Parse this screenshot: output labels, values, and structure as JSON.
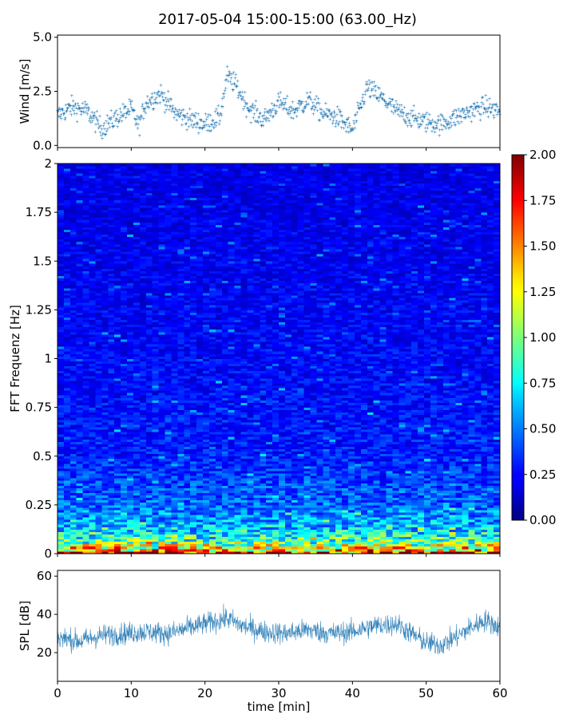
{
  "title": "2017-05-04 15:00-15:00 (63.00_Hz)",
  "chart_data": [
    {
      "type": "scatter",
      "panel": "wind",
      "ylabel": "Wind [m/s]",
      "xlim": [
        0,
        60
      ],
      "ylim": [
        -0.1,
        5.1
      ],
      "yticks": [
        "0.0",
        "2.5",
        "5.0"
      ],
      "ytick_values": [
        0,
        2.5,
        5
      ],
      "color": "#1f77b4",
      "series": [
        {
          "x_minutes": [
            0,
            2,
            4,
            6,
            8,
            10,
            11,
            12,
            14,
            16,
            18,
            20,
            22,
            23,
            24,
            26,
            28,
            30,
            32,
            34,
            36,
            38,
            40,
            42,
            44,
            46,
            48,
            50,
            52,
            54,
            56,
            58,
            60
          ],
          "values": [
            1.4,
            1.8,
            1.6,
            0.8,
            1.3,
            1.7,
            0.9,
            2.0,
            2.4,
            1.5,
            1.2,
            1.0,
            1.3,
            3.2,
            2.9,
            1.7,
            1.2,
            2.0,
            1.6,
            2.1,
            1.5,
            1.3,
            0.7,
            2.7,
            2.2,
            1.6,
            1.3,
            1.1,
            1.0,
            1.3,
            1.6,
            1.8,
            1.6
          ]
        }
      ]
    },
    {
      "type": "heatmap",
      "panel": "spectrogram",
      "ylabel": "FFT Frequenz [Hz]",
      "xlim": [
        0,
        60
      ],
      "ylim": [
        0,
        2
      ],
      "yticks": [
        "0",
        "0.25",
        "0.5",
        "0.75",
        "1",
        "1.25",
        "1.5",
        "1.75",
        "2"
      ],
      "ytick_values": [
        0,
        0.25,
        0.5,
        0.75,
        1,
        1.25,
        1.5,
        1.75,
        2
      ],
      "colormap": "jet",
      "colorbar": {
        "range": [
          0,
          2
        ],
        "ticks": [
          "0.00",
          "0.25",
          "0.50",
          "0.75",
          "1.00",
          "1.25",
          "1.50",
          "1.75",
          "2.00"
        ],
        "tick_values": [
          0,
          0.25,
          0.5,
          0.75,
          1,
          1.25,
          1.5,
          1.75,
          2
        ]
      },
      "profile": {
        "freq_hz": [
          0,
          0.02,
          0.05,
          0.1,
          0.15,
          0.25,
          0.5,
          1.0,
          1.5,
          2.0
        ],
        "typical_value": [
          2.0,
          1.4,
          1.0,
          0.75,
          0.6,
          0.45,
          0.3,
          0.25,
          0.22,
          0.2
        ]
      }
    },
    {
      "type": "line",
      "panel": "spl",
      "ylabel": "SPL [dB]",
      "xlabel": "time [min]",
      "xlim": [
        0,
        60
      ],
      "ylim": [
        5,
        63
      ],
      "xticks": [
        "0",
        "10",
        "20",
        "30",
        "40",
        "50",
        "60"
      ],
      "xtick_values": [
        0,
        10,
        20,
        30,
        40,
        50,
        60
      ],
      "yticks": [
        "20",
        "40",
        "60"
      ],
      "ytick_values": [
        20,
        40,
        60
      ],
      "color": "#1f77b4",
      "series": [
        {
          "x_minutes": [
            0,
            3,
            6,
            9,
            12,
            15,
            18,
            21,
            23,
            25,
            28,
            31,
            34,
            37,
            40,
            43,
            46,
            48,
            50,
            52,
            54,
            56,
            58,
            60
          ],
          "values": [
            28,
            26,
            29,
            30,
            31,
            30,
            33,
            36,
            38,
            34,
            31,
            30,
            32,
            30,
            31,
            34,
            35,
            30,
            25,
            24,
            28,
            33,
            37,
            33
          ]
        }
      ]
    }
  ]
}
